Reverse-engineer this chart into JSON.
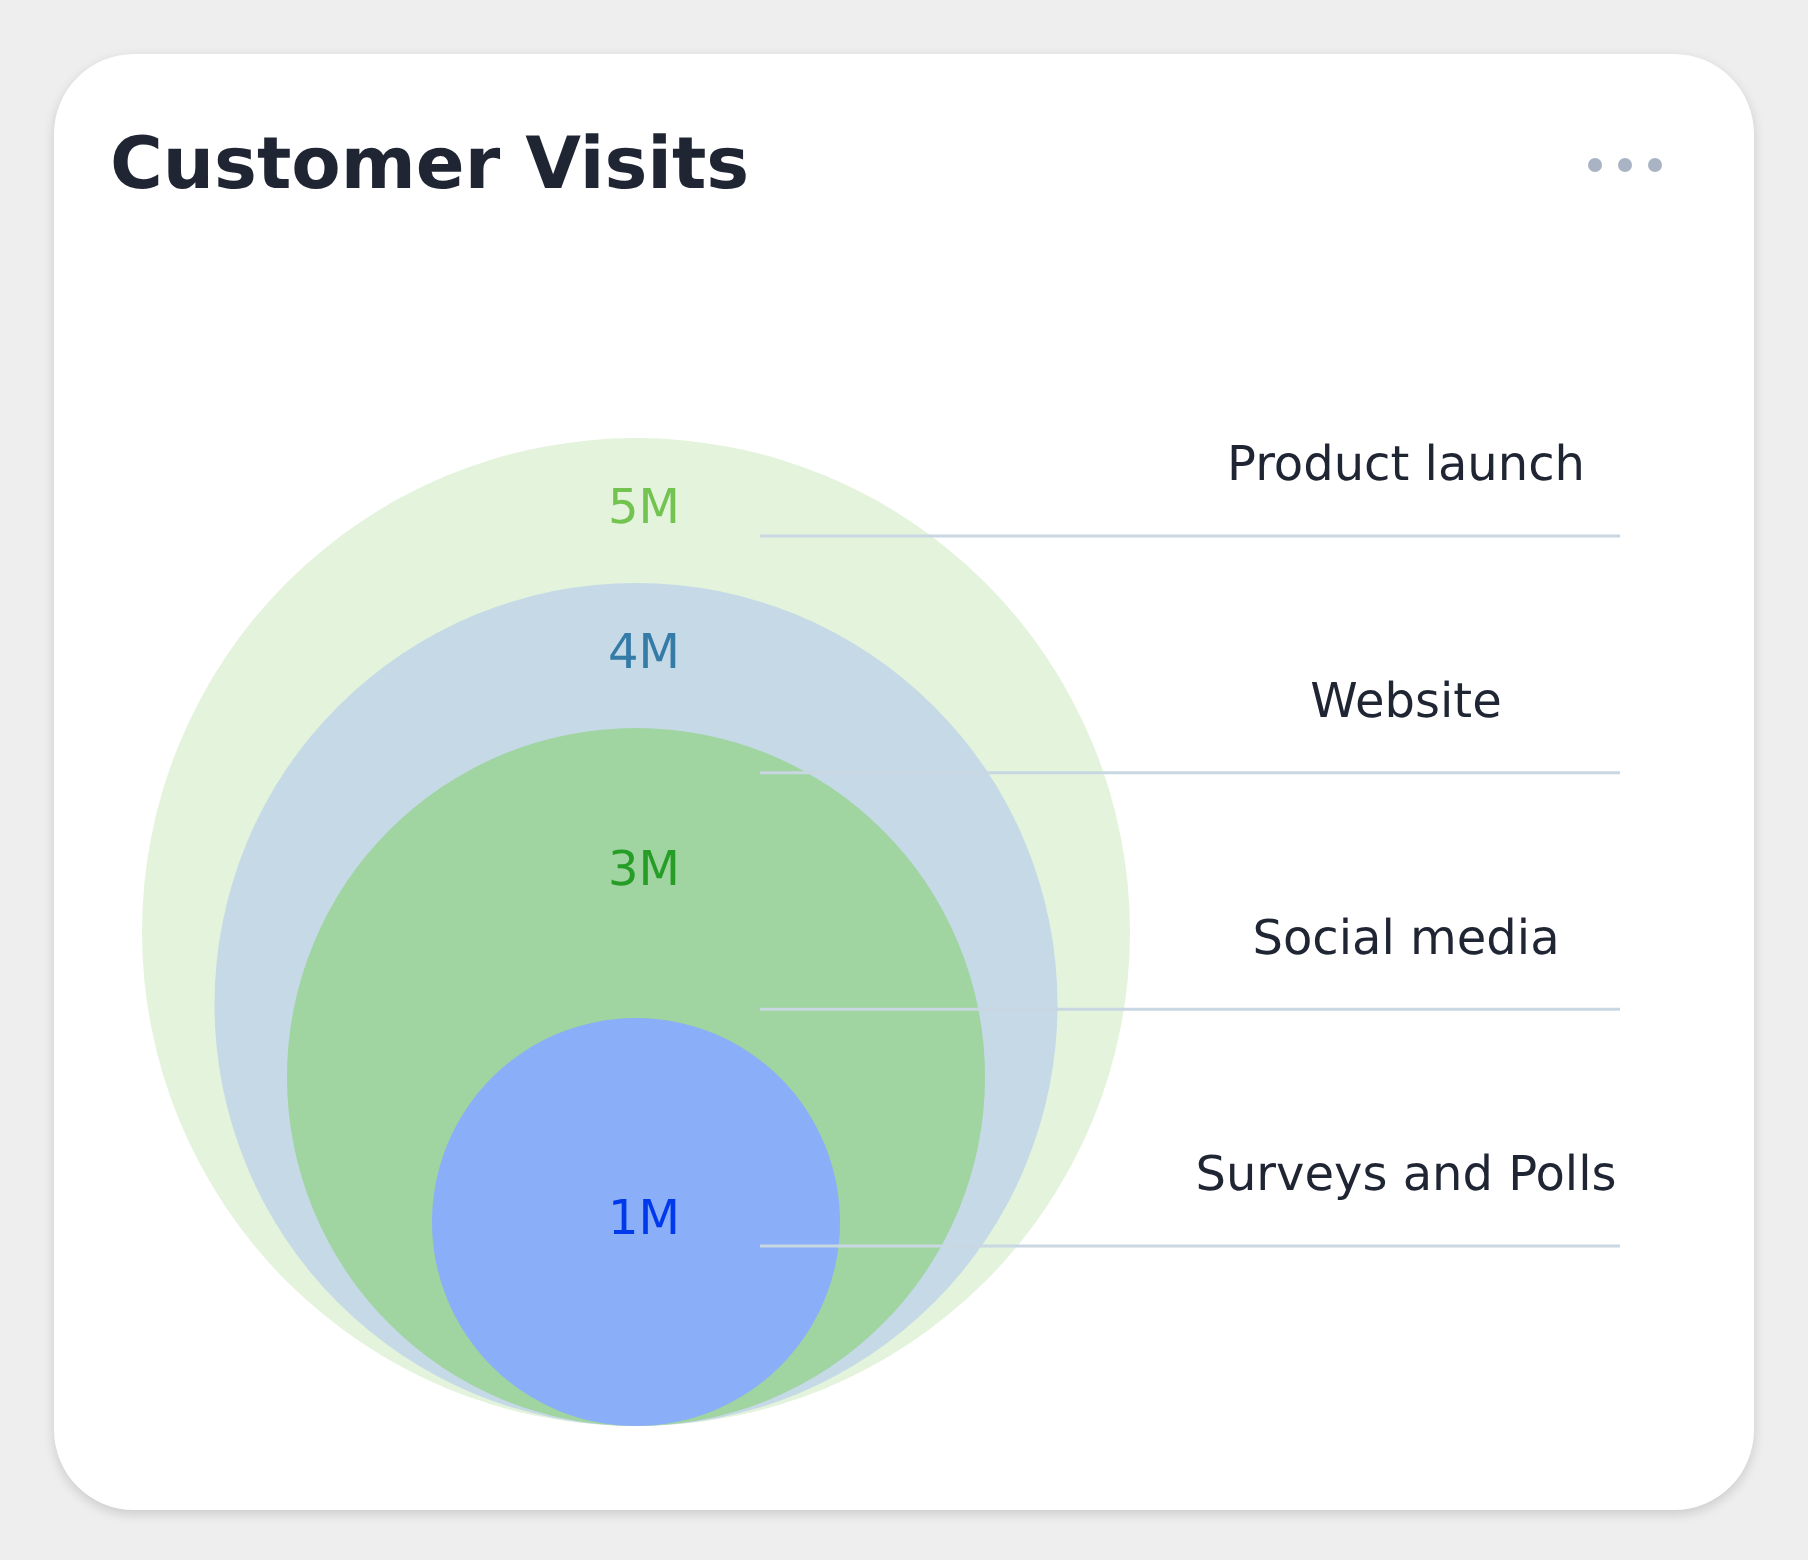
{
  "chart_data": {
    "type": "other",
    "title": "Customer Visits",
    "categories": [
      "Product launch",
      "Website",
      "Social media",
      "Surveys and Polls"
    ],
    "values": [
      5,
      4,
      3,
      1
    ],
    "value_labels": [
      "5M",
      "4M",
      "3M",
      "1M"
    ],
    "colors": [
      "#e3f3dc",
      "#c5d9e6",
      "#a0d4a0",
      "#8aaef7"
    ]
  }
}
